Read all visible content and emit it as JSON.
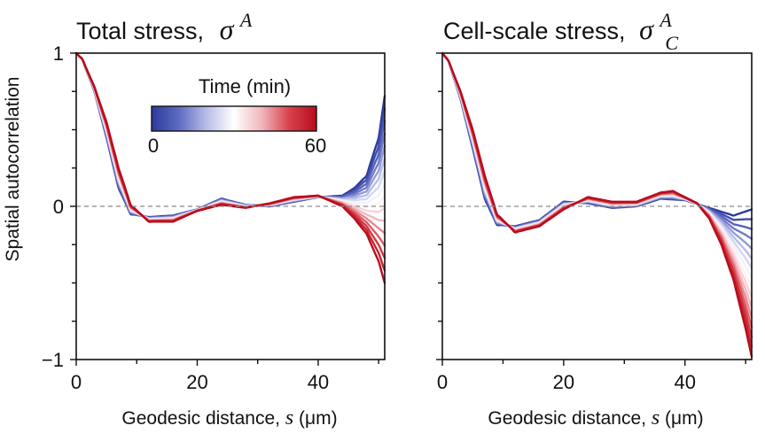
{
  "chart_data": [
    {
      "type": "line",
      "title": "Total stress,",
      "title_symbol": "σ",
      "title_superscript": "A",
      "title_subscript": "",
      "xlabel_text": "Geodesic distance, ",
      "xlabel_symbol": "s",
      "xlabel_unit": " (μm)",
      "ylabel": "Spatial autocorrelation",
      "xlim": [
        0,
        51
      ],
      "ylim": [
        -1,
        1
      ],
      "xticks": [
        0,
        20,
        40
      ],
      "yticks": [
        -1,
        0,
        1
      ],
      "ytick_labels": [
        "−1",
        "0",
        "1"
      ],
      "reference_line": {
        "y": 0,
        "style": "dashed",
        "color": "#8c8c8c"
      },
      "series_count": 16,
      "series_start": {
        "time_min": 0,
        "x": [
          0,
          1,
          3,
          5,
          7,
          9,
          12,
          16,
          20,
          24,
          28,
          32,
          36,
          40,
          44,
          46,
          48,
          50,
          51
        ],
        "y": [
          1.0,
          0.96,
          0.75,
          0.45,
          0.12,
          -0.05,
          -0.07,
          -0.06,
          -0.02,
          0.05,
          0.01,
          0.0,
          0.03,
          0.06,
          0.07,
          0.12,
          0.2,
          0.45,
          0.72
        ]
      },
      "series_end": {
        "time_min": 60,
        "x": [
          0,
          1,
          3,
          5,
          7,
          9,
          12,
          16,
          20,
          24,
          28,
          32,
          36,
          40,
          44,
          46,
          48,
          50,
          51
        ],
        "y": [
          1.0,
          0.96,
          0.78,
          0.55,
          0.25,
          0.01,
          -0.1,
          -0.1,
          -0.03,
          0.01,
          -0.01,
          0.02,
          0.06,
          0.07,
          0.0,
          -0.08,
          -0.18,
          -0.36,
          -0.5
        ]
      }
    },
    {
      "type": "line",
      "title": "Cell-scale stress,",
      "title_symbol": "σ",
      "title_superscript": "A",
      "title_subscript": "C",
      "xlabel_text": "Geodesic distance, ",
      "xlabel_symbol": "s",
      "xlabel_unit": " (μm)",
      "ylabel": "",
      "xlim": [
        0,
        51
      ],
      "ylim": [
        -1,
        1
      ],
      "xticks": [
        0,
        20,
        40
      ],
      "yticks": [
        -1,
        0,
        1
      ],
      "ytick_labels": [
        "",
        "",
        ""
      ],
      "reference_line": {
        "y": 0,
        "style": "dashed",
        "color": "#8c8c8c"
      },
      "series_count": 16,
      "series_start": {
        "time_min": 0,
        "x": [
          0,
          1,
          3,
          5,
          7,
          9,
          12,
          16,
          20,
          24,
          28,
          32,
          36,
          40,
          44,
          48,
          51
        ],
        "y": [
          1.0,
          0.95,
          0.7,
          0.38,
          0.05,
          -0.12,
          -0.13,
          -0.09,
          0.03,
          0.02,
          -0.01,
          0.0,
          0.05,
          0.04,
          -0.01,
          -0.06,
          -0.02
        ]
      },
      "series_end": {
        "time_min": 60,
        "x": [
          0,
          1,
          3,
          5,
          7,
          9,
          12,
          16,
          20,
          24,
          28,
          32,
          36,
          38,
          42,
          44,
          46,
          48,
          50,
          51
        ],
        "y": [
          1.0,
          0.95,
          0.75,
          0.5,
          0.2,
          -0.05,
          -0.17,
          -0.13,
          -0.02,
          0.06,
          0.03,
          0.03,
          0.09,
          0.1,
          0.02,
          -0.08,
          -0.25,
          -0.48,
          -0.8,
          -0.98
        ]
      }
    }
  ],
  "colorbar": {
    "title": "Time (min)",
    "min_label": "0",
    "max_label": "60",
    "min": 0,
    "max": 60,
    "colors": [
      "#2b3a9b",
      "#5f6bc2",
      "#b8bde6",
      "#ffffff",
      "#f1b7bd",
      "#d9424c",
      "#b80d1c"
    ]
  }
}
